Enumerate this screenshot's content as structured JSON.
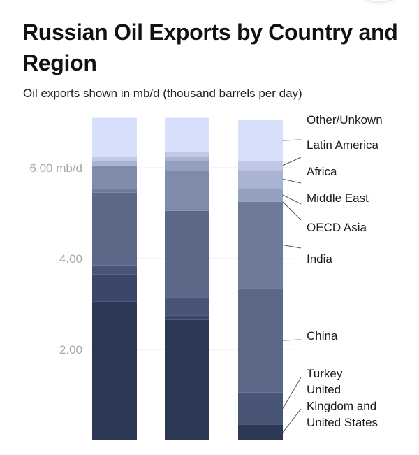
{
  "title": "Russian Oil Exports by Country and Region",
  "subtitle": "Oil exports shown in mb/d (thousand barrels per day)",
  "chart_data": {
    "type": "bar",
    "stacked": true,
    "title": "Russian Oil Exports by Country and Region",
    "subtitle": "Oil exports shown in mb/d (thousand barrels per day)",
    "xlabel": "",
    "ylabel": "",
    "ylim": [
      0,
      7.4
    ],
    "y_ticks": [
      {
        "value": 2,
        "label": "2.00"
      },
      {
        "value": 4,
        "label": "4.00"
      },
      {
        "value": 6,
        "label": "6.00 mb/d"
      }
    ],
    "grid": true,
    "legend": "right",
    "categories": [
      "",
      "",
      ""
    ],
    "series": [
      {
        "name": "United States",
        "color": "#2d3857",
        "values": [
          3.05,
          2.65,
          0.35
        ]
      },
      {
        "name": "United Kingdom",
        "color": "#3b4668",
        "values": [
          0.6,
          0.1,
          0.0
        ]
      },
      {
        "name": "Turkey",
        "color": "#495577",
        "values": [
          0.2,
          0.4,
          0.7
        ]
      },
      {
        "name": "China",
        "color": "#5d6889",
        "values": [
          1.6,
          1.9,
          2.3
        ]
      },
      {
        "name": "India",
        "color": "#6f7a9b",
        "values": [
          0.1,
          0.0,
          1.9
        ]
      },
      {
        "name": "OECD Asia",
        "color": "#7f8bab",
        "values": [
          0.5,
          0.9,
          0.0
        ]
      },
      {
        "name": "Middle East",
        "color": "#94a0c0",
        "values": [
          0.0,
          0.2,
          0.3
        ]
      },
      {
        "name": "Africa",
        "color": "#a9b4d3",
        "values": [
          0.1,
          0.1,
          0.4
        ]
      },
      {
        "name": "Latin America",
        "color": "#bfc9e6",
        "values": [
          0.1,
          0.1,
          0.2
        ]
      },
      {
        "name": "Other/Unkown",
        "color": "#d7e0fa",
        "values": [
          0.85,
          0.75,
          0.9
        ]
      }
    ],
    "legend_labels": [
      {
        "text": "Other/Unkown",
        "series": "Other/Unkown"
      },
      {
        "text": "Latin America",
        "series": "Latin America"
      },
      {
        "text": "Africa",
        "series": "Africa"
      },
      {
        "text": "Middle East",
        "series": "Middle East"
      },
      {
        "text": "OECD Asia",
        "series": "OECD Asia"
      },
      {
        "text": "India",
        "series": "India"
      },
      {
        "text": "China",
        "series": "China"
      },
      {
        "text": "Turkey",
        "series": "Turkey"
      },
      {
        "text": "United\nKingdom and\nUnited States",
        "series": "United States"
      }
    ]
  }
}
